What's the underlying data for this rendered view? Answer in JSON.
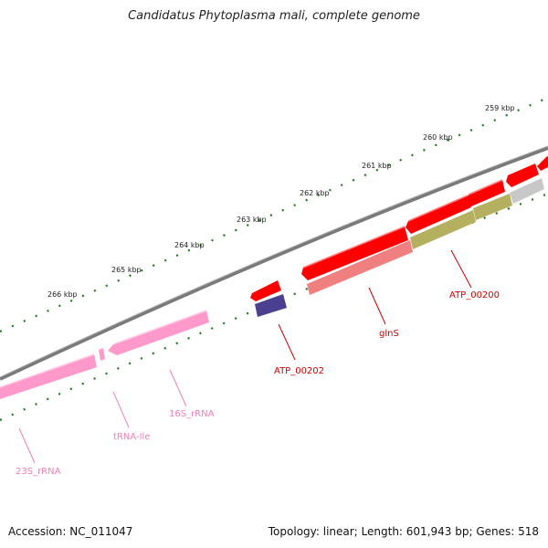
{
  "title": "Candidatus Phytoplasma mali, complete genome",
  "footer": {
    "accession": "Accession: NC_011047",
    "topology": "Topology: linear; Length: 601,943 bp; Genes: 518"
  },
  "ticks": [
    "259 kbp",
    "260 kbp",
    "261 kbp",
    "262 kbp",
    "263 kbp",
    "264 kbp",
    "265 kbp",
    "266 kbp"
  ],
  "colors": {
    "backbone": "#7a7a7a",
    "tick": "#1a7a1a",
    "cds": "#ff0000",
    "cds_secondary": "#f08080",
    "rrna": "#ff99cc",
    "olive": "#b5b060",
    "navy": "#4b3f8f",
    "grey_feature": "#c8c8c8",
    "cds_label": "#cc0000",
    "rrna_label": "#ee82b4"
  },
  "labels": {
    "atp_00200": "ATP_00200",
    "glns": "glnS",
    "atp_00202": "ATP_00202",
    "rrna_16s": "16S_rRNA",
    "trna_ile": "tRNA-Ile",
    "rrna_23s": "23S_rRNA"
  }
}
